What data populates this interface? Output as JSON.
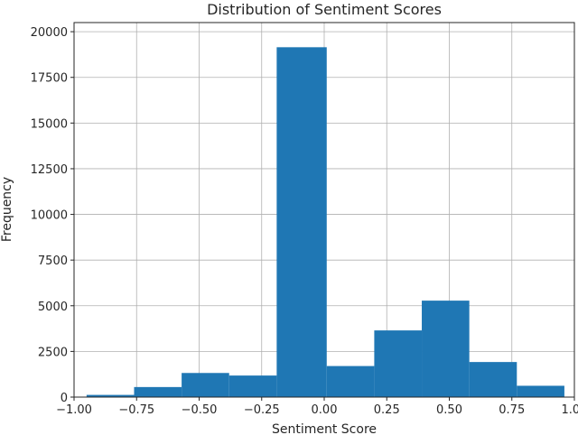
{
  "chart_data": {
    "type": "bar",
    "title": "Distribution of Sentiment Scores",
    "xlabel": "Sentiment Score",
    "ylabel": "Frequency",
    "xlim": [
      -1.0,
      1.0
    ],
    "ylim": [
      0,
      20500
    ],
    "grid": true,
    "bar_color": "#1f77b4",
    "x_ticks": [
      -1.0,
      -0.75,
      -0.5,
      -0.25,
      0.0,
      0.25,
      0.5,
      0.75,
      1.0
    ],
    "x_tick_labels": [
      "−1.00",
      "−0.75",
      "−0.50",
      "−0.25",
      "0.00",
      "0.25",
      "0.50",
      "0.75",
      "1.00"
    ],
    "y_ticks": [
      0,
      2500,
      5000,
      7500,
      10000,
      12500,
      15000,
      17500,
      20000
    ],
    "y_tick_labels": [
      "0",
      "2500",
      "5000",
      "7500",
      "10000",
      "12500",
      "15000",
      "17500",
      "20000"
    ],
    "bins": [
      {
        "x0": -0.95,
        "x1": -0.76,
        "value": 120
      },
      {
        "x0": -0.76,
        "x1": -0.57,
        "value": 550
      },
      {
        "x0": -0.57,
        "x1": -0.38,
        "value": 1320
      },
      {
        "x0": -0.38,
        "x1": -0.19,
        "value": 1180
      },
      {
        "x0": -0.19,
        "x1": 0.01,
        "value": 19150
      },
      {
        "x0": 0.01,
        "x1": 0.2,
        "value": 1700
      },
      {
        "x0": 0.2,
        "x1": 0.39,
        "value": 3650
      },
      {
        "x0": 0.39,
        "x1": 0.58,
        "value": 5280
      },
      {
        "x0": 0.58,
        "x1": 0.77,
        "value": 1920
      },
      {
        "x0": 0.77,
        "x1": 0.96,
        "value": 620
      }
    ]
  }
}
